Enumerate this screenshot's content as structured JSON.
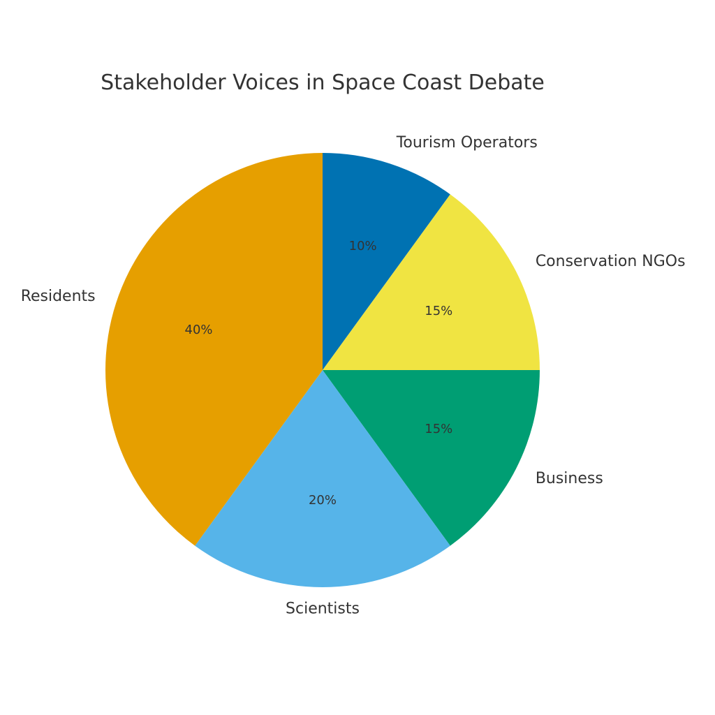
{
  "chart_data": {
    "type": "pie",
    "title": "Stakeholder Voices in Space Coast Debate",
    "categories": [
      "Tourism Operators",
      "Conservation NGOs",
      "Business",
      "Scientists",
      "Residents"
    ],
    "values": [
      10,
      15,
      15,
      20,
      40
    ],
    "percent_labels": [
      "10%",
      "15%",
      "15%",
      "20%",
      "40%"
    ],
    "colors": [
      "#0072b2",
      "#f0e442",
      "#009e73",
      "#56b4e9",
      "#e69f00"
    ],
    "start_angle_deg": 90,
    "direction": "clockwise"
  }
}
